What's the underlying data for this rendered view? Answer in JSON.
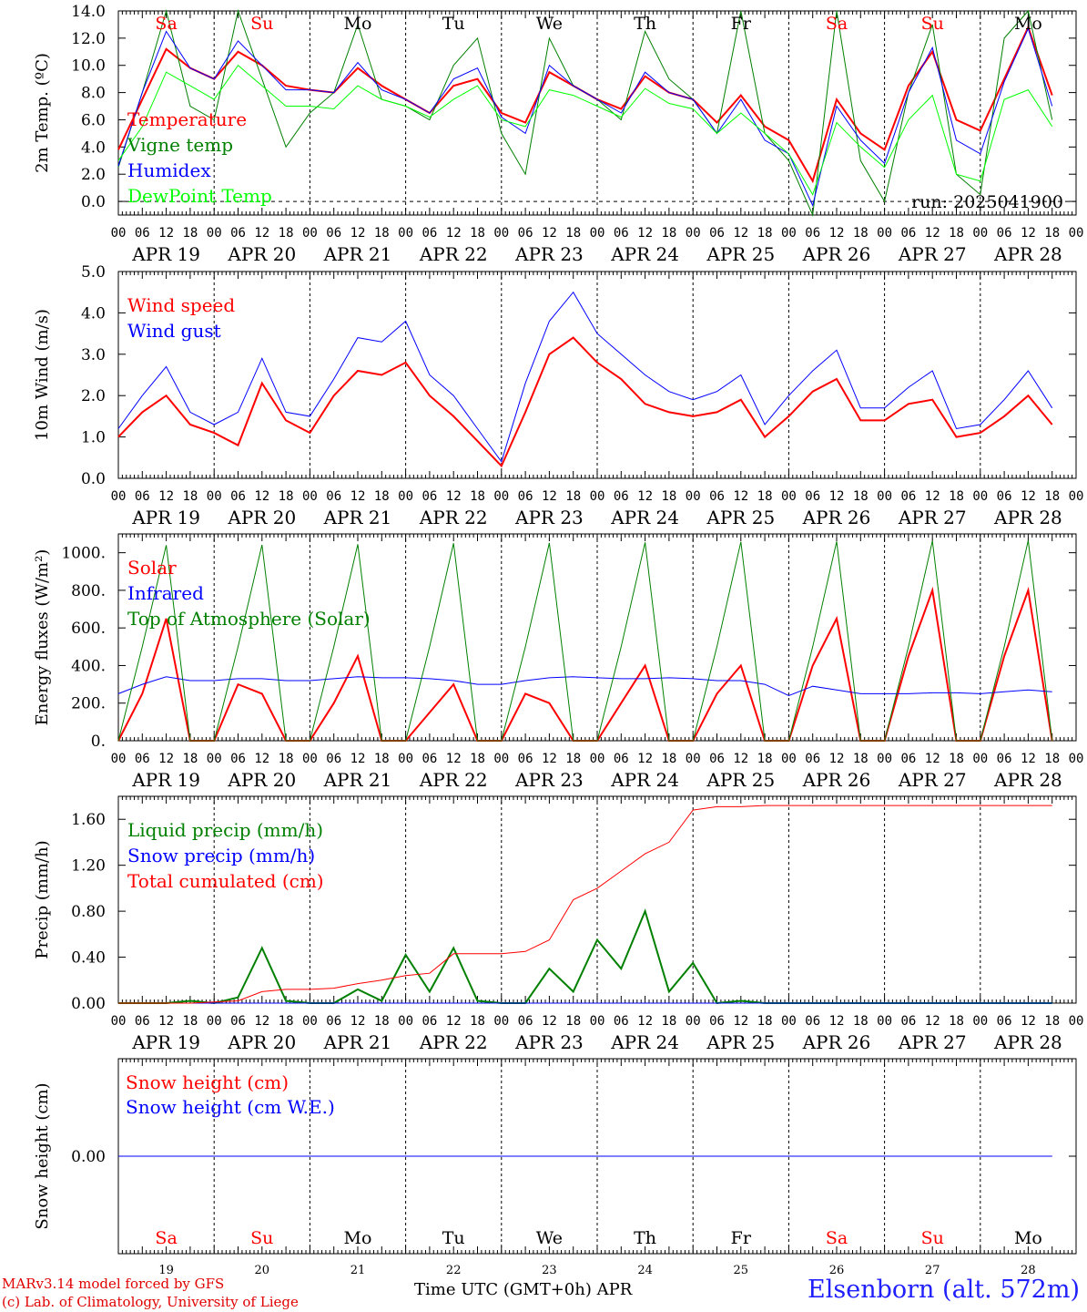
{
  "run_label": "run: 2025041900",
  "hour_ticks": [
    "00",
    "06",
    "12",
    "18"
  ],
  "dates": [
    "APR 19",
    "APR 20",
    "APR 21",
    "APR 22",
    "APR 23",
    "APR 24",
    "APR 25",
    "APR 26",
    "APR 27",
    "APR 28"
  ],
  "weekdays": [
    {
      "label": "Sa",
      "color": "#ff0000"
    },
    {
      "label": "Su",
      "color": "#ff0000"
    },
    {
      "label": "Mo",
      "color": "#000000"
    },
    {
      "label": "Tu",
      "color": "#000000"
    },
    {
      "label": "We",
      "color": "#000000"
    },
    {
      "label": "Th",
      "color": "#000000"
    },
    {
      "label": "Fr",
      "color": "#000000"
    },
    {
      "label": "Sa",
      "color": "#ff0000"
    },
    {
      "label": "Su",
      "color": "#ff0000"
    },
    {
      "label": "Mo",
      "color": "#000000"
    }
  ],
  "day_numbers": [
    "19",
    "20",
    "21",
    "22",
    "23",
    "24",
    "25",
    "26",
    "27",
    "28"
  ],
  "footer": {
    "credit1": "MARv3.14 model forced by GFS",
    "credit2": "(c) Lab. of Climatology, University of Liege",
    "time_axis": "Time UTC (GMT+0h) APR",
    "station": "Elsenborn (alt. 572m)"
  },
  "chart_data": [
    {
      "type": "line",
      "ylabel": "2m Temp. (ºC)",
      "ylim": [
        -1.0,
        14.0
      ],
      "yticks": [
        0,
        2,
        4,
        6,
        8,
        10,
        12,
        14
      ],
      "tick_labels": [
        "0.0",
        "2.0",
        "4.0",
        "6.0",
        "8.0",
        "10.0",
        "12.0",
        "14.0"
      ],
      "x_unit": "hours since 2025-04-19 00 UTC (every 6h)",
      "series": [
        {
          "name": "Temperature",
          "color": "#ff0000",
          "values": [
            3.8,
            7.5,
            11.2,
            9.8,
            9.0,
            11.0,
            10.0,
            8.5,
            8.2,
            8.0,
            9.8,
            8.5,
            7.5,
            6.5,
            8.5,
            9.0,
            6.5,
            5.8,
            9.5,
            8.5,
            7.5,
            6.8,
            9.2,
            8.0,
            7.5,
            5.8,
            7.8,
            5.5,
            4.5,
            1.5,
            7.5,
            5.0,
            3.8,
            8.5,
            11.0,
            6.0,
            5.2,
            9.0,
            12.8,
            7.8
          ]
        },
        {
          "name": "Vigne temp",
          "color": "#008000",
          "values": [
            2.5,
            8.0,
            14.0,
            7.0,
            6.0,
            14.0,
            9.0,
            4.0,
            6.5,
            8.0,
            13.0,
            7.5,
            7.0,
            6.0,
            10.0,
            12.0,
            5.0,
            2.0,
            12.0,
            8.5,
            7.5,
            6.0,
            12.5,
            9.0,
            7.5,
            5.0,
            14.0,
            5.0,
            3.0,
            -1.0,
            14.0,
            3.0,
            0.0,
            8.0,
            13.0,
            2.0,
            0.5,
            12.0,
            14.0,
            6.0
          ]
        },
        {
          "name": "Humidex",
          "color": "#0000ff",
          "values": [
            2.6,
            8.0,
            12.5,
            9.8,
            9.0,
            11.8,
            10.0,
            8.2,
            8.2,
            8.0,
            10.2,
            8.2,
            7.5,
            6.5,
            9.0,
            9.8,
            6.2,
            5.0,
            10.0,
            8.5,
            7.5,
            6.5,
            9.5,
            8.0,
            7.5,
            5.0,
            7.5,
            4.5,
            3.5,
            -0.3,
            7.0,
            4.5,
            2.8,
            8.0,
            11.3,
            4.5,
            3.5,
            8.8,
            12.7,
            7.0
          ]
        },
        {
          "name": "DewPoint Temp",
          "color": "#00ff00",
          "values": [
            3.0,
            5.5,
            9.5,
            8.5,
            7.5,
            10.0,
            8.5,
            7.0,
            7.0,
            6.8,
            8.5,
            7.5,
            7.0,
            6.2,
            7.5,
            8.5,
            6.0,
            5.5,
            8.2,
            7.8,
            7.0,
            6.2,
            8.3,
            7.2,
            6.8,
            5.0,
            6.5,
            5.0,
            3.5,
            0.5,
            5.8,
            4.0,
            2.5,
            6.0,
            7.8,
            2.0,
            1.5,
            7.5,
            8.2,
            5.5
          ]
        }
      ]
    },
    {
      "type": "line",
      "ylabel": "10m Wind (m/s)",
      "ylim": [
        0.0,
        5.0
      ],
      "yticks": [
        0,
        1,
        2,
        3,
        4,
        5
      ],
      "tick_labels": [
        "0.0",
        "1.0",
        "2.0",
        "3.0",
        "4.0",
        "5.0"
      ],
      "x_unit": "hours since 2025-04-19 00 UTC (every 6h)",
      "series": [
        {
          "name": "Wind speed",
          "color": "#ff0000",
          "values": [
            1.0,
            1.6,
            2.0,
            1.3,
            1.1,
            0.8,
            2.3,
            1.4,
            1.1,
            2.0,
            2.6,
            2.5,
            2.8,
            2.0,
            1.5,
            0.9,
            0.3,
            1.6,
            3.0,
            3.4,
            2.8,
            2.4,
            1.8,
            1.6,
            1.5,
            1.6,
            1.9,
            1.0,
            1.5,
            2.1,
            2.4,
            1.4,
            1.4,
            1.8,
            1.9,
            1.0,
            1.1,
            1.5,
            2.0,
            1.3
          ]
        },
        {
          "name": "Wind gust",
          "color": "#0000ff",
          "values": [
            1.2,
            2.0,
            2.7,
            1.6,
            1.3,
            1.6,
            2.9,
            1.6,
            1.5,
            2.4,
            3.4,
            3.3,
            3.8,
            2.5,
            2.0,
            1.2,
            0.4,
            2.3,
            3.8,
            4.5,
            3.5,
            3.0,
            2.5,
            2.1,
            1.9,
            2.1,
            2.5,
            1.3,
            2.0,
            2.6,
            3.1,
            1.7,
            1.7,
            2.2,
            2.6,
            1.2,
            1.3,
            1.9,
            2.6,
            1.7
          ]
        }
      ]
    },
    {
      "type": "line",
      "ylabel": "Energy fluxes (W/m²)",
      "ylim": [
        0,
        1100
      ],
      "yticks": [
        0,
        200,
        400,
        600,
        800,
        1000
      ],
      "tick_labels": [
        "0.",
        "200.",
        "400.",
        "600.",
        "800.",
        "1000."
      ],
      "x_unit": "hours since 2025-04-19 00 UTC (every 6h)",
      "series": [
        {
          "name": "Solar",
          "color": "#ff0000",
          "values": [
            0,
            250,
            650,
            0,
            0,
            300,
            250,
            0,
            0,
            200,
            450,
            0,
            0,
            150,
            300,
            0,
            0,
            250,
            200,
            0,
            0,
            200,
            400,
            0,
            0,
            250,
            400,
            0,
            0,
            400,
            650,
            0,
            0,
            450,
            800,
            0,
            0,
            450,
            800,
            0
          ]
        },
        {
          "name": "Infrared",
          "color": "#0000ff",
          "values": [
            250,
            300,
            340,
            320,
            320,
            330,
            330,
            320,
            320,
            330,
            340,
            335,
            335,
            330,
            320,
            300,
            300,
            320,
            335,
            340,
            335,
            330,
            330,
            335,
            330,
            320,
            320,
            300,
            240,
            290,
            270,
            250,
            250,
            250,
            255,
            255,
            250,
            260,
            270,
            260
          ]
        },
        {
          "name": "Top of Atmosphere (Solar)",
          "color": "#008000",
          "values": [
            0,
            500,
            1040,
            0,
            0,
            500,
            1042,
            0,
            0,
            500,
            1045,
            0,
            0,
            500,
            1050,
            0,
            0,
            500,
            1052,
            0,
            0,
            500,
            1055,
            0,
            0,
            500,
            1058,
            0,
            0,
            500,
            1060,
            0,
            0,
            500,
            1063,
            0,
            0,
            500,
            1065,
            0
          ]
        }
      ]
    },
    {
      "type": "line",
      "ylabel": "Precip (mm/h)",
      "ylim": [
        0.0,
        1.8
      ],
      "yticks": [
        0.0,
        0.4,
        0.8,
        1.2,
        1.6
      ],
      "tick_labels": [
        "0.00",
        "0.40",
        "0.80",
        "1.20",
        "1.60"
      ],
      "x_unit": "hours since 2025-04-19 00 UTC (every 6h)",
      "series": [
        {
          "name": "Liquid precip (mm/h)",
          "color": "#008000",
          "values": [
            0,
            0,
            0,
            0.02,
            0,
            0.05,
            0.48,
            0.02,
            0,
            0,
            0.12,
            0.02,
            0.42,
            0.1,
            0.48,
            0.02,
            0,
            0,
            0.3,
            0.1,
            0.55,
            0.3,
            0.8,
            0.1,
            0.35,
            0,
            0.02,
            0,
            0,
            0,
            0,
            0,
            0,
            0,
            0,
            0,
            0,
            0,
            0,
            0
          ]
        },
        {
          "name": "Snow precip (mm/h)",
          "color": "#0000ff",
          "values": [
            0,
            0,
            0,
            0,
            0,
            0,
            0,
            0,
            0,
            0,
            0,
            0,
            0,
            0,
            0,
            0,
            0,
            0,
            0,
            0,
            0,
            0,
            0,
            0,
            0,
            0,
            0,
            0,
            0,
            0,
            0,
            0,
            0,
            0,
            0,
            0,
            0,
            0,
            0,
            0
          ]
        },
        {
          "name": "Total cumulated (cm)",
          "color": "#ff0000",
          "values": [
            0,
            0,
            0,
            0,
            0.01,
            0.02,
            0.1,
            0.12,
            0.12,
            0.13,
            0.17,
            0.2,
            0.24,
            0.26,
            0.43,
            0.43,
            0.43,
            0.45,
            0.55,
            0.9,
            1.0,
            1.15,
            1.3,
            1.4,
            1.68,
            1.71,
            1.71,
            1.72,
            1.72,
            1.72,
            1.72,
            1.72,
            1.72,
            1.72,
            1.72,
            1.72,
            1.72,
            1.72,
            1.72,
            1.72
          ]
        }
      ]
    },
    {
      "type": "line",
      "ylabel": "Snow height (cm)",
      "ylim": [
        -1.0,
        1.0
      ],
      "yticks": [
        0
      ],
      "tick_labels": [
        "0.00"
      ],
      "x_unit": "hours since 2025-04-19 00 UTC (every 6h)",
      "series": [
        {
          "name": "Snow height (cm)",
          "color": "#ff0000",
          "values": [
            0,
            0,
            0,
            0,
            0,
            0,
            0,
            0,
            0,
            0,
            0,
            0,
            0,
            0,
            0,
            0,
            0,
            0,
            0,
            0,
            0,
            0,
            0,
            0,
            0,
            0,
            0,
            0,
            0,
            0,
            0,
            0,
            0,
            0,
            0,
            0,
            0,
            0,
            0,
            0
          ]
        },
        {
          "name": "Snow height (cm W.E.)",
          "color": "#0000ff",
          "values": [
            0,
            0,
            0,
            0,
            0,
            0,
            0,
            0,
            0,
            0,
            0,
            0,
            0,
            0,
            0,
            0,
            0,
            0,
            0,
            0,
            0,
            0,
            0,
            0,
            0,
            0,
            0,
            0,
            0,
            0,
            0,
            0,
            0,
            0,
            0,
            0,
            0,
            0,
            0,
            0
          ]
        }
      ]
    }
  ]
}
